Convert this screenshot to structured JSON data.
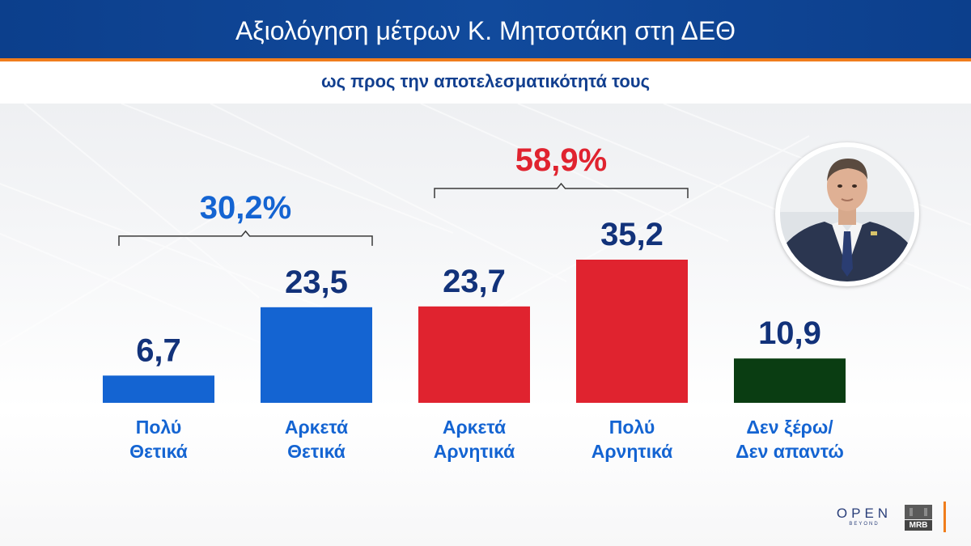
{
  "header": {
    "title": "Αξιολόγηση μέτρων Κ. Μητσοτάκη στη ΔΕΘ",
    "subtitle": "ως προς την αποτελεσματικότητά τους"
  },
  "colors": {
    "positive": "#1464d2",
    "negative": "#e0232f",
    "unknown": "#0a3d12",
    "value_text": "#12327a",
    "label_text": "#1464d2",
    "bracket": "#3a3a3a",
    "header_bg": "#0c3f8c",
    "accent": "#f07d1c"
  },
  "chart_data": {
    "type": "bar",
    "title": "Αξιολόγηση μέτρων Κ. Μητσοτάκη στη ΔΕΘ",
    "subtitle": "ως προς την αποτελεσματικότητά τους",
    "categories": [
      [
        "Πολύ",
        "Θετικά"
      ],
      [
        "Αρκετά",
        "Θετικά"
      ],
      [
        "Αρκετά",
        "Αρνητικά"
      ],
      [
        "Πολύ",
        "Αρνητικά"
      ],
      [
        "Δεν ξέρω/",
        "Δεν απαντώ"
      ]
    ],
    "values": [
      6.7,
      23.5,
      23.7,
      35.2,
      10.9
    ],
    "value_labels": [
      "6,7",
      "23,5",
      "23,7",
      "35,2",
      "10,9"
    ],
    "bar_colors": [
      "#1464d2",
      "#1464d2",
      "#e0232f",
      "#e0232f",
      "#0a3d12"
    ],
    "ylim": [
      0,
      35.2
    ],
    "grid": false,
    "legend": "none",
    "groups": [
      {
        "label": "30,2%",
        "from": 0,
        "to": 1,
        "color": "#1464d2"
      },
      {
        "label": "58,9%",
        "from": 2,
        "to": 3,
        "color": "#e0232f"
      }
    ]
  },
  "logos": {
    "channel_main": "OPEN",
    "channel_sub": "BEYOND",
    "pollster": "MRB"
  },
  "icons": {
    "portrait": "person-portrait-icon"
  }
}
